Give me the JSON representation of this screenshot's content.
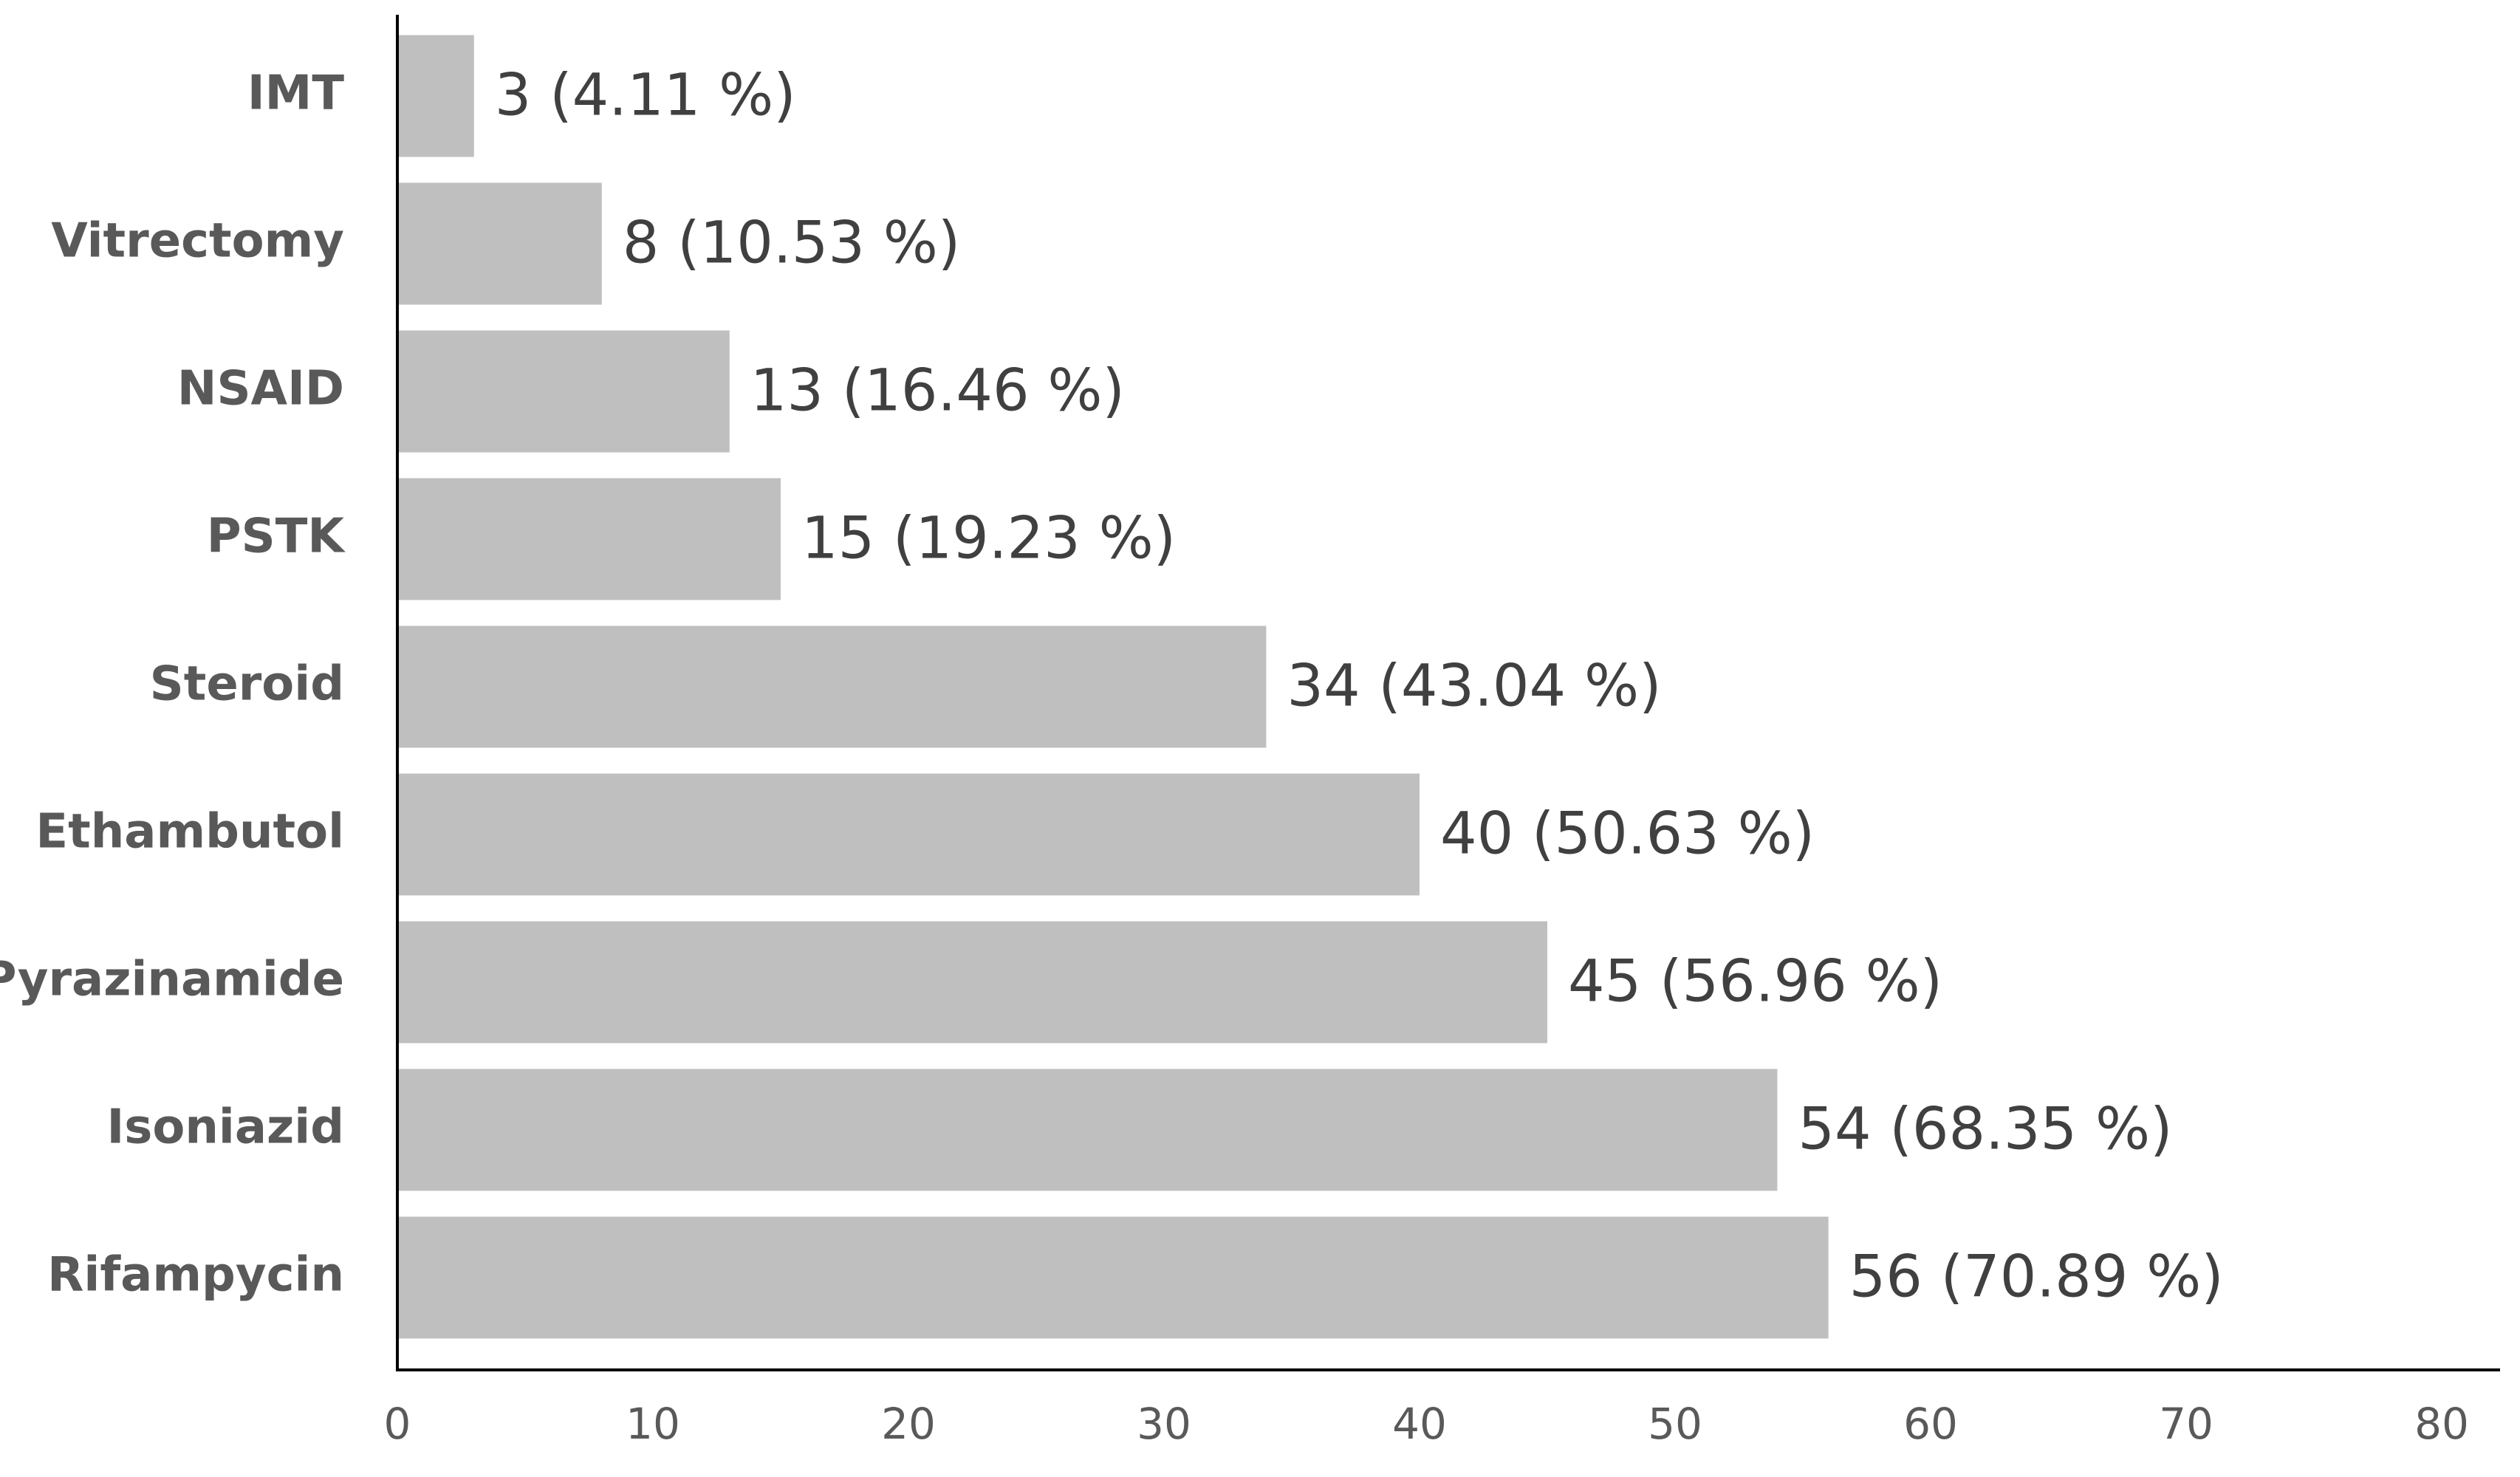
{
  "chart_data": {
    "type": "bar",
    "orientation": "horizontal",
    "title": "",
    "xlabel": "",
    "ylabel": "",
    "categories": [
      "IMT",
      "Vitrectomy",
      "NSAID",
      "PSTK",
      "Steroid",
      "Ethambutol",
      "Pyrazinamide",
      "Isoniazid",
      "Rifampycin"
    ],
    "values": [
      3,
      8,
      13,
      15,
      34,
      40,
      45,
      54,
      56
    ],
    "data_labels": [
      "3 (4.11 %)",
      "8 (10.53 %)",
      "13 (16.46 %)",
      "15 (19.23 %)",
      "34 (43.04 %)",
      "40 (50.63 %)",
      "45 (56.96 %)",
      "54 (68.35 %)",
      "56 (70.89 %)"
    ],
    "xlim": [
      0,
      80
    ],
    "x_ticks": [
      "0",
      "10",
      "20",
      "30",
      "40",
      "50",
      "60",
      "70",
      "80"
    ],
    "grid": false,
    "legend": "none",
    "bar_color": "#bfbfbf",
    "axis_color": "#000000"
  }
}
